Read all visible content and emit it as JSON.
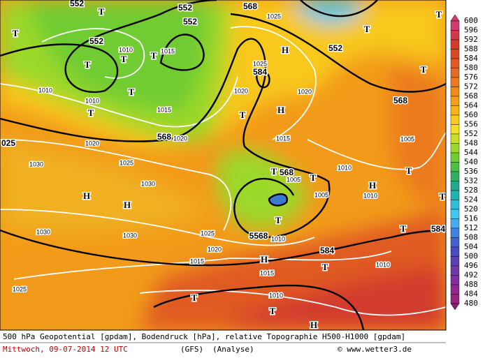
{
  "map": {
    "labels": [
      "552",
      "T",
      "552",
      "552",
      "568",
      "1025",
      "T",
      "T",
      "T",
      "552",
      "T",
      "T",
      "1010",
      "T",
      "1015",
      "H",
      "552",
      "1025",
      "584",
      "1020",
      "1010",
      "1010",
      "T",
      "T",
      "1015",
      "H",
      "T",
      "568",
      "T",
      "568",
      "1020",
      "1015",
      "1005",
      "1020",
      "1030",
      "1025",
      "T",
      "568",
      "T",
      "1005",
      "1010",
      "T",
      "H",
      "1030",
      "H",
      "H",
      "1010",
      "1005",
      "1030",
      "1030",
      "1025",
      "5568",
      "1010",
      "T",
      "584",
      "T",
      "584",
      "1020",
      "1015",
      "H",
      "T",
      "1015",
      "1010",
      "1025",
      "1010",
      "T",
      "T",
      "H",
      "025",
      "T",
      "1020"
    ]
  },
  "legend": {
    "values": [
      "600",
      "596",
      "592",
      "588",
      "584",
      "580",
      "576",
      "572",
      "568",
      "564",
      "560",
      "556",
      "552",
      "548",
      "544",
      "540",
      "536",
      "532",
      "528",
      "524",
      "520",
      "516",
      "512",
      "508",
      "504",
      "500",
      "496",
      "492",
      "488",
      "484",
      "480"
    ],
    "colors": [
      "#d23c6c",
      "#d43848",
      "#d23a2e",
      "#d94a26",
      "#e05a22",
      "#e66a20",
      "#ec7a1c",
      "#f08c18",
      "#f49e18",
      "#f8b21a",
      "#f8c81c",
      "#f2de22",
      "#c8e024",
      "#9cd82a",
      "#70cc32",
      "#4cc040",
      "#32b062",
      "#22a88a",
      "#22b2b2",
      "#2ac0d8",
      "#40c8f0",
      "#48a8f0",
      "#4282e2",
      "#4262d2",
      "#4a4ac2",
      "#5a40b2",
      "#7038a8",
      "#8030a0",
      "#902890",
      "#982482",
      "#8a2070"
    ]
  },
  "footer": {
    "line1": "500 hPa Geopotential [gpdam], Bodendruck [hPa], relative Topographie H500-H1000 [gpdam]",
    "date": "Mittwoch, 09-07-2014  12 UTC",
    "model": "(GFS)",
    "run": "(Analyse)",
    "credit": "© www.wetter3.de"
  }
}
